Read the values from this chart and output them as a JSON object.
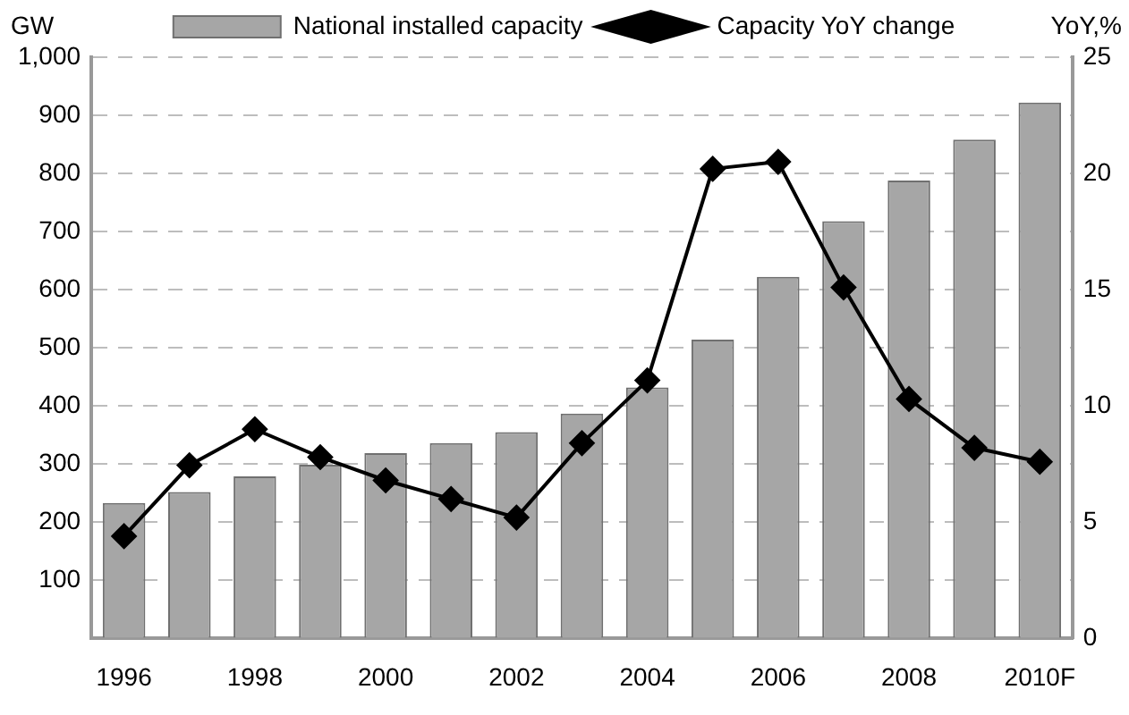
{
  "chart_data": {
    "type": "bar",
    "ylabel": "GW",
    "y2label": "YoY,%",
    "categories": [
      "1996",
      null,
      "1998",
      null,
      "2000",
      null,
      "2002",
      null,
      "2004",
      null,
      "2006",
      null,
      "2008",
      null,
      "2010F"
    ],
    "series": [
      {
        "name": "National installed capacity",
        "color": "#a6a6a6",
        "values": [
          233,
          252,
          279,
          299,
          319,
          336,
          355,
          387,
          432,
          514,
          622,
          718,
          788,
          858,
          922
        ]
      },
      {
        "name": "Capacity YoY change",
        "type": "line",
        "axis": "y2",
        "color": "#000000",
        "marker": "diamond",
        "values": [
          4.4,
          7.45,
          9.0,
          7.8,
          6.8,
          6.0,
          5.2,
          8.4,
          11.1,
          20.2,
          20.5,
          15.1,
          10.3,
          8.2,
          7.6
        ]
      }
    ],
    "ylim": [
      0,
      1000
    ],
    "yticks": [
      {
        "value": 0,
        "label": null
      },
      100,
      200,
      300,
      400,
      500,
      600,
      700,
      800,
      900,
      {
        "value": 1000,
        "label": "1,000"
      }
    ],
    "y2lim": [
      0,
      25
    ],
    "y2ticks": [
      0,
      5,
      10,
      15,
      20,
      25
    ],
    "grid": "y",
    "legend": "top"
  }
}
